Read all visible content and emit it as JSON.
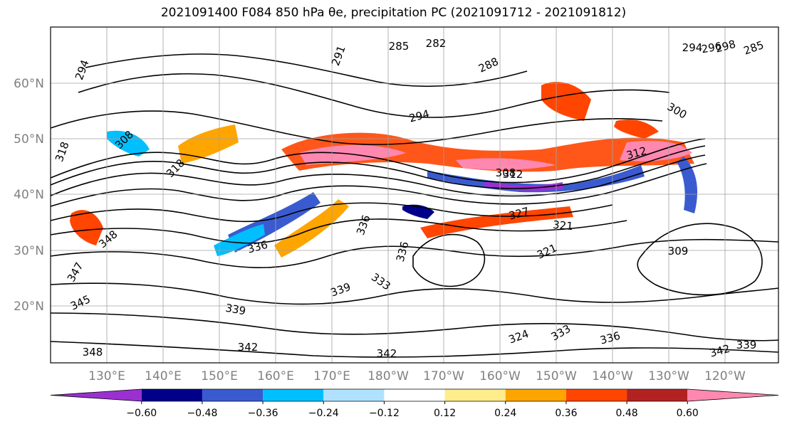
{
  "title": "2021091400 F084 850 hPa θe, precipitation PC (2021091712 - 2021091812)",
  "map": {
    "lat_labels": [
      "60°N",
      "50°N",
      "40°N",
      "30°N",
      "20°N"
    ],
    "lon_labels": [
      "130°E",
      "140°E",
      "150°E",
      "160°E",
      "170°E",
      "180°W",
      "170°W",
      "160°W",
      "150°W",
      "140°W",
      "130°W",
      "120°W"
    ]
  },
  "contour_labels": [
    "294",
    "291",
    "285",
    "282",
    "288",
    "308",
    "318",
    "312",
    "294",
    "300",
    "298",
    "294",
    "296",
    "285",
    "308",
    "312",
    "327",
    "321",
    "321",
    "309",
    "336",
    "336",
    "333",
    "336",
    "339",
    "339",
    "342",
    "342",
    "342",
    "339",
    "336",
    "333",
    "324",
    "345",
    "347",
    "348",
    "348",
    "318"
  ],
  "colorbar": {
    "colors": [
      "#9b30d0",
      "#00008b",
      "#3a5bd0",
      "#00bfff",
      "#b0e2ff",
      "#ffffff",
      "#ffec8b",
      "#ffa500",
      "#ff4500",
      "#b22222",
      "#ff88b0"
    ],
    "tick_labels": [
      "−0.60",
      "−0.48",
      "−0.36",
      "−0.24",
      "−0.12",
      "0.12",
      "0.24",
      "0.36",
      "0.48",
      "0.60"
    ]
  }
}
